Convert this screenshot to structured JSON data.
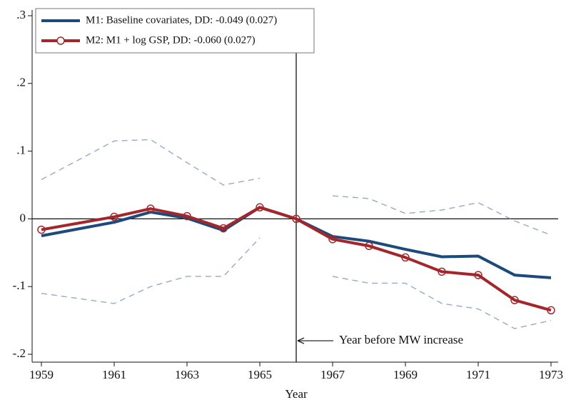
{
  "chart_data": {
    "type": "line",
    "x_label": "Year",
    "x": [
      1959,
      1961,
      1962,
      1963,
      1964,
      1965,
      1966,
      1967,
      1968,
      1969,
      1970,
      1971,
      1972,
      1973
    ],
    "series": [
      {
        "name": "M1: Baseline covariates, DD: -0.049 (0.027)",
        "color": "#1c4a7c",
        "marker": "none",
        "dashed": false,
        "values": [
          -0.025,
          -0.005,
          0.01,
          0.001,
          -0.017,
          0.017,
          0,
          -0.026,
          -0.033,
          -0.045,
          -0.056,
          -0.055,
          -0.083,
          -0.087
        ]
      },
      {
        "name": "M2: M1 + log GSP, DD: -0.060 (0.027)",
        "color": "#a3262a",
        "marker": "circle",
        "dashed": false,
        "values": [
          -0.016,
          0.003,
          0.015,
          0.004,
          -0.014,
          0.017,
          0,
          -0.03,
          -0.04,
          -0.057,
          -0.078,
          -0.083,
          -0.12,
          -0.135
        ]
      },
      {
        "color": "#98a8c8",
        "marker": "none",
        "dashed": true,
        "values": [
          0.058,
          0.115,
          0.117,
          0.083,
          0.05,
          0.06,
          null,
          0.034,
          0.03,
          0.008,
          0.013,
          0.024,
          -0.003,
          -0.024
        ]
      },
      {
        "color": "#98a8c8",
        "marker": "none",
        "dashed": true,
        "values": [
          -0.11,
          -0.125,
          -0.1,
          -0.085,
          -0.085,
          -0.028,
          null,
          -0.085,
          -0.095,
          -0.095,
          -0.125,
          -0.133,
          -0.162,
          -0.15
        ]
      }
    ],
    "xlim": [
      1959,
      1973
    ],
    "xticks": [
      1959,
      1961,
      1963,
      1965,
      1967,
      1969,
      1971,
      1973
    ],
    "ylim": [
      -0.2,
      0.3
    ],
    "yticks": [
      {
        "value": -0.2,
        "label": "-.2"
      },
      {
        "value": -0.1,
        "label": "-.1"
      },
      0,
      {
        "value": 0.1,
        "label": ".1"
      },
      {
        "value": 0.2,
        "label": ".2"
      },
      {
        "value": 0.3,
        "label": ".3"
      }
    ],
    "hline": 0,
    "vline": 1966,
    "annotation": "Year before MW increase",
    "legend": "top-left"
  }
}
